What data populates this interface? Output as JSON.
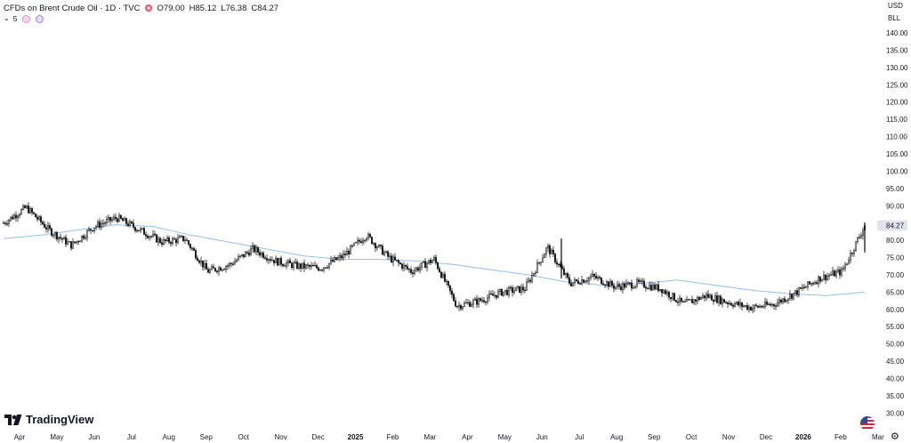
{
  "header": {
    "title": "CFDs on Brent Crude Oil · 1D · TVC",
    "ohlc": [
      {
        "label": "O",
        "value": "79.00"
      },
      {
        "label": "H",
        "value": "85.12"
      },
      {
        "label": "L",
        "value": "76.38"
      },
      {
        "label": "C",
        "value": "84.27"
      }
    ],
    "indicator_count": "5"
  },
  "price_axis": {
    "currency": "USD",
    "unit": "BLL"
  },
  "brand": {
    "name": "TradingView"
  },
  "colors": {
    "candle_outline": "#000000",
    "candle_up_fill": "#ffffff",
    "candle_down_fill": "#000000",
    "moving_average": "#90bff9",
    "last_price_tag": "#e0e3eb"
  },
  "icons": [
    "chevron-down-icon",
    "indicator-icon",
    "indicator-icon",
    "tradingview-logo-icon",
    "us-flag-icon",
    "settings-gear-icon"
  ],
  "chart_data": {
    "type": "candlestick",
    "title": "CFDs on Brent Crude Oil · 1D · TVC",
    "last_price": "84.27",
    "y_ticks": [
      "140.00",
      "135.00",
      "130.00",
      "125.00",
      "120.00",
      "115.00",
      "110.00",
      "105.00",
      "100.00",
      "95.00",
      "90.00",
      "85.00",
      "80.00",
      "75.00",
      "70.00",
      "65.00",
      "60.00",
      "55.00",
      "50.00",
      "45.00",
      "40.00",
      "35.00",
      "30.00"
    ],
    "ylim": [
      27.5,
      144
    ],
    "x_ticks": [
      "Apr",
      "May",
      "Jun",
      "Jul",
      "Aug",
      "Sep",
      "Oct",
      "Nov",
      "Dec",
      "2025",
      "Feb",
      "Mar",
      "Apr",
      "May",
      "Jun",
      "Jul",
      "Aug",
      "Sep",
      "Oct",
      "Nov",
      "Dec",
      "2026",
      "Feb",
      "Mar"
    ],
    "x_ticks_bold": [
      "2025",
      "2026"
    ],
    "close_path": [
      {
        "t": "Apr",
        "v": 85.0
      },
      {
        "t": "mid-Apr",
        "v": 89.5
      },
      {
        "t": "May",
        "v": 83.0
      },
      {
        "t": "Jun",
        "v": 78.5
      },
      {
        "t": "mid-Jun",
        "v": 84.0
      },
      {
        "t": "Jul",
        "v": 86.5
      },
      {
        "t": "mid-Jul",
        "v": 83.0
      },
      {
        "t": "Aug",
        "v": 79.5
      },
      {
        "t": "mid-Aug",
        "v": 80.5
      },
      {
        "t": "Sep",
        "v": 71.0
      },
      {
        "t": "mid-Sep",
        "v": 73.0
      },
      {
        "t": "Oct",
        "v": 77.5
      },
      {
        "t": "mid-Oct",
        "v": 74.0
      },
      {
        "t": "Nov",
        "v": 72.5
      },
      {
        "t": "Dec",
        "v": 72.0
      },
      {
        "t": "2025",
        "v": 75.5
      },
      {
        "t": "mid-Jan",
        "v": 81.5
      },
      {
        "t": "Feb",
        "v": 75.0
      },
      {
        "t": "Mar",
        "v": 71.0
      },
      {
        "t": "Apr",
        "v": 74.5
      },
      {
        "t": "mid-Apr",
        "v": 61.0
      },
      {
        "t": "May",
        "v": 62.5
      },
      {
        "t": "mid-May",
        "v": 65.0
      },
      {
        "t": "Jun",
        "v": 66.0
      },
      {
        "t": "mid-Jun",
        "v": 78.0
      },
      {
        "t": "late-Jun",
        "v": 67.5
      },
      {
        "t": "Jul",
        "v": 69.5
      },
      {
        "t": "Aug",
        "v": 66.5
      },
      {
        "t": "Sep",
        "v": 67.5
      },
      {
        "t": "Oct",
        "v": 66.0
      },
      {
        "t": "mid-Oct",
        "v": 61.5
      },
      {
        "t": "Nov",
        "v": 64.0
      },
      {
        "t": "Dec",
        "v": 62.0
      },
      {
        "t": "late-Dec",
        "v": 60.5
      },
      {
        "t": "2026",
        "v": 61.5
      },
      {
        "t": "mid-Jan",
        "v": 65.0
      },
      {
        "t": "Feb",
        "v": 69.0
      },
      {
        "t": "late-Feb",
        "v": 71.0
      },
      {
        "t": "Mar",
        "v": 84.27
      }
    ],
    "moving_average_path": [
      {
        "t": "Apr",
        "v": 80.5
      },
      {
        "t": "May",
        "v": 81.5
      },
      {
        "t": "Jun",
        "v": 83.0
      },
      {
        "t": "Jul",
        "v": 84.5
      },
      {
        "t": "Aug",
        "v": 84.0
      },
      {
        "t": "Sep",
        "v": 81.5
      },
      {
        "t": "Oct",
        "v": 79.5
      },
      {
        "t": "Nov",
        "v": 77.5
      },
      {
        "t": "Dec",
        "v": 75.5
      },
      {
        "t": "2025",
        "v": 74.5
      },
      {
        "t": "Feb",
        "v": 74.5
      },
      {
        "t": "Mar",
        "v": 74.0
      },
      {
        "t": "Apr",
        "v": 73.0
      },
      {
        "t": "May",
        "v": 71.5
      },
      {
        "t": "Jun",
        "v": 70.0
      },
      {
        "t": "Jul",
        "v": 68.0
      },
      {
        "t": "Aug",
        "v": 67.0
      },
      {
        "t": "Sep",
        "v": 67.5
      },
      {
        "t": "Oct",
        "v": 68.5
      },
      {
        "t": "Nov",
        "v": 67.0
      },
      {
        "t": "Dec",
        "v": 65.5
      },
      {
        "t": "2026",
        "v": 64.5
      },
      {
        "t": "Feb",
        "v": 64.0
      },
      {
        "t": "Mar",
        "v": 65.0
      }
    ]
  }
}
